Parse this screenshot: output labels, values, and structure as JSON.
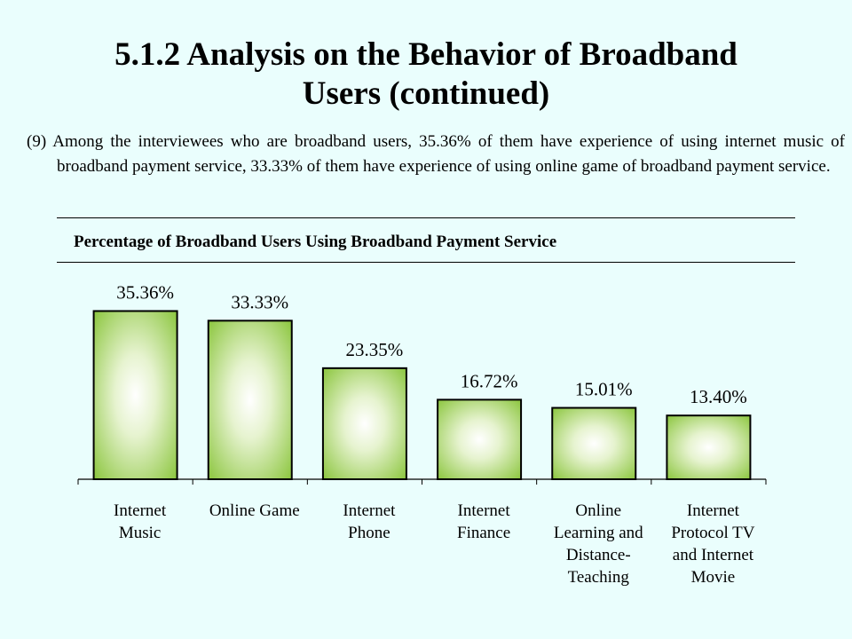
{
  "slide": {
    "title_line1": "5.1.2 Analysis on the Behavior of Broadband",
    "title_line2": "Users (continued)",
    "description": "(9) Among the interviewees who are broadband users, 35.36% of them have experience of using internet music of broadband payment service, 33.33% of them have experience of using online game of broadband payment service."
  },
  "chart_data": {
    "type": "bar",
    "title": "Percentage of Broadband Users Using Broadband Payment Service",
    "categories": [
      [
        "Internet",
        "Music"
      ],
      [
        "Online Game"
      ],
      [
        "Internet",
        "Phone"
      ],
      [
        "Internet",
        "Finance"
      ],
      [
        "Online",
        "Learning and",
        "Distance-",
        "Teaching"
      ],
      [
        "Internet",
        "Protocol TV",
        "and Internet",
        "Movie"
      ]
    ],
    "values": [
      35.36,
      33.33,
      23.35,
      16.72,
      15.01,
      13.4
    ],
    "data_labels": [
      "35.36%",
      "33.33%",
      "23.35%",
      "16.72%",
      "15.01%",
      "13.40%"
    ],
    "unit": "%",
    "ylim": [
      0,
      40
    ],
    "grid": false,
    "legend": "none",
    "bar_color_edge": "#8cc63f",
    "bar_color_center": "#ffffff",
    "bar_outline": "#000000"
  }
}
